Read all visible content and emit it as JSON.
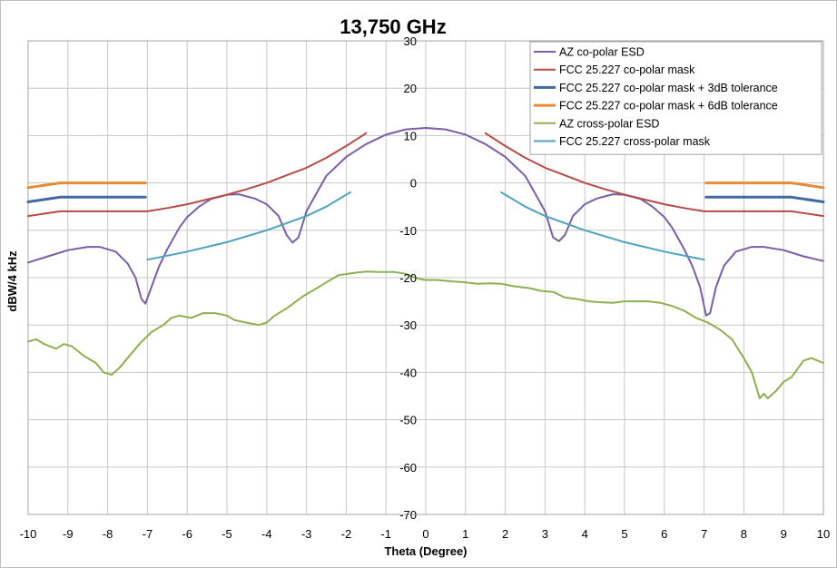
{
  "chart_data": {
    "type": "line",
    "title": "13,750 GHz",
    "xlabel": "Theta (Degree)",
    "ylabel": "dBW/4 kHz",
    "xlim": [
      -10,
      10
    ],
    "ylim": [
      -70,
      30
    ],
    "xticks": [
      -10,
      -9,
      -8,
      -7,
      -6,
      -5,
      -4,
      -3,
      -2,
      -1,
      0,
      1,
      2,
      3,
      4,
      5,
      6,
      7,
      8,
      9,
      10
    ],
    "yticks": [
      30,
      20,
      10,
      0,
      -10,
      -20,
      -30,
      -40,
      -50,
      -60,
      -70
    ],
    "grid": true,
    "legend_position": "top-right",
    "series": [
      {
        "name": "AZ co-polar ESD",
        "color": "#7b5ea7",
        "segments": [
          [
            [
              -10,
              -16.8
            ],
            [
              -9.5,
              -15.5
            ],
            [
              -9,
              -14.2
            ],
            [
              -8.5,
              -13.5
            ],
            [
              -8.2,
              -13.5
            ],
            [
              -7.8,
              -14.5
            ],
            [
              -7.5,
              -17
            ],
            [
              -7.3,
              -20
            ],
            [
              -7.15,
              -24.5
            ],
            [
              -7.05,
              -25.5
            ],
            [
              -6.9,
              -22
            ],
            [
              -6.7,
              -17.5
            ],
            [
              -6.5,
              -14
            ],
            [
              -6.2,
              -9.5
            ],
            [
              -6,
              -7.2
            ],
            [
              -5.7,
              -5
            ],
            [
              -5.4,
              -3.4
            ],
            [
              -5,
              -2.5
            ],
            [
              -4.7,
              -2.4
            ],
            [
              -4.3,
              -3.3
            ],
            [
              -4,
              -4.5
            ],
            [
              -3.7,
              -7
            ],
            [
              -3.5,
              -11
            ],
            [
              -3.35,
              -12.6
            ],
            [
              -3.2,
              -11.5
            ],
            [
              -3,
              -6
            ],
            [
              -2.7,
              -1.5
            ],
            [
              -2.5,
              1.5
            ],
            [
              -2,
              5.5
            ],
            [
              -1.5,
              8.2
            ],
            [
              -1,
              10.2
            ],
            [
              -0.5,
              11.3
            ],
            [
              0,
              11.6
            ],
            [
              0.5,
              11.3
            ],
            [
              1,
              10.2
            ],
            [
              1.5,
              8.2
            ],
            [
              2,
              5.5
            ],
            [
              2.5,
              1.5
            ],
            [
              2.7,
              -1.5
            ],
            [
              3,
              -6
            ],
            [
              3.2,
              -11.5
            ],
            [
              3.35,
              -12.3
            ],
            [
              3.5,
              -11
            ],
            [
              3.7,
              -7
            ],
            [
              4,
              -4.5
            ],
            [
              4.3,
              -3.3
            ],
            [
              4.7,
              -2.4
            ],
            [
              5,
              -2.5
            ],
            [
              5.4,
              -3.4
            ],
            [
              5.7,
              -5
            ],
            [
              6,
              -7.2
            ],
            [
              6.2,
              -9.5
            ],
            [
              6.5,
              -14
            ],
            [
              6.7,
              -17.5
            ],
            [
              6.9,
              -22
            ],
            [
              7.05,
              -28
            ],
            [
              7.15,
              -27.5
            ],
            [
              7.3,
              -22
            ],
            [
              7.5,
              -17.5
            ],
            [
              7.8,
              -14.5
            ],
            [
              8.2,
              -13.5
            ],
            [
              8.5,
              -13.5
            ],
            [
              9,
              -14.2
            ],
            [
              9.5,
              -15.5
            ],
            [
              10,
              -16.5
            ]
          ]
        ]
      },
      {
        "name": "FCC 25.227 co-polar mask",
        "color": "#b84a48",
        "segments": [
          [
            [
              -10,
              -7
            ],
            [
              -9.2,
              -6
            ],
            [
              -7,
              -6
            ],
            [
              -6.5,
              -5.3
            ],
            [
              -6,
              -4.5
            ],
            [
              -5.5,
              -3.5
            ],
            [
              -5,
              -2.5
            ],
            [
              -4.5,
              -1.3
            ],
            [
              -4,
              0
            ],
            [
              -3.5,
              1.6
            ],
            [
              -3,
              3.2
            ],
            [
              -2.5,
              5.3
            ],
            [
              -2,
              7.8
            ],
            [
              -1.5,
              10.5
            ]
          ],
          [
            [
              1.5,
              10.5
            ],
            [
              2,
              7.8
            ],
            [
              2.5,
              5.3
            ],
            [
              3,
              3.2
            ],
            [
              3.5,
              1.6
            ],
            [
              4,
              0
            ],
            [
              4.5,
              -1.3
            ],
            [
              5,
              -2.5
            ],
            [
              5.5,
              -3.5
            ],
            [
              6,
              -4.5
            ],
            [
              6.5,
              -5.3
            ],
            [
              7,
              -6
            ],
            [
              9.2,
              -6
            ],
            [
              10,
              -7
            ]
          ]
        ]
      },
      {
        "name": "FCC 25.227 co-polar mask + 3dB tolerance",
        "color": "#3e6aa0",
        "segments": [
          [
            [
              -10,
              -4
            ],
            [
              -9.2,
              -3
            ],
            [
              -7.05,
              -3
            ]
          ],
          [
            [
              7.05,
              -3
            ],
            [
              9.2,
              -3
            ],
            [
              10,
              -4
            ]
          ]
        ]
      },
      {
        "name": "FCC 25.227 co-polar mask + 6dB tolerance",
        "color": "#e88a38",
        "segments": [
          [
            [
              -10,
              -1
            ],
            [
              -9.2,
              0
            ],
            [
              -7.05,
              0
            ]
          ],
          [
            [
              7.05,
              0
            ],
            [
              9.2,
              0
            ],
            [
              10,
              -1
            ]
          ]
        ]
      },
      {
        "name": "AZ cross-polar ESD",
        "color": "#8db050",
        "segments": [
          [
            [
              -10,
              -33.5
            ],
            [
              -9.8,
              -33
            ],
            [
              -9.6,
              -34
            ],
            [
              -9.3,
              -35
            ],
            [
              -9.1,
              -34
            ],
            [
              -8.9,
              -34.5
            ],
            [
              -8.6,
              -36.5
            ],
            [
              -8.3,
              -38
            ],
            [
              -8.1,
              -40
            ],
            [
              -7.9,
              -40.5
            ],
            [
              -7.7,
              -39
            ],
            [
              -7.5,
              -37
            ],
            [
              -7.2,
              -34
            ],
            [
              -6.9,
              -31.5
            ],
            [
              -6.6,
              -30
            ],
            [
              -6.4,
              -28.5
            ],
            [
              -6.2,
              -28
            ],
            [
              -5.9,
              -28.5
            ],
            [
              -5.6,
              -27.5
            ],
            [
              -5.3,
              -27.5
            ],
            [
              -5,
              -28
            ],
            [
              -4.8,
              -29
            ],
            [
              -4.5,
              -29.5
            ],
            [
              -4.2,
              -30
            ],
            [
              -4,
              -29.5
            ],
            [
              -3.8,
              -28
            ],
            [
              -3.5,
              -26.5
            ],
            [
              -3.1,
              -24
            ],
            [
              -2.8,
              -22.5
            ],
            [
              -2.5,
              -21
            ],
            [
              -2.2,
              -19.5
            ],
            [
              -1.8,
              -19
            ],
            [
              -1.5,
              -18.7
            ],
            [
              -1.2,
              -18.8
            ],
            [
              -0.8,
              -18.8
            ],
            [
              -0.5,
              -19.2
            ],
            [
              -0.2,
              -20.2
            ],
            [
              0,
              -20.5
            ],
            [
              0.3,
              -20.5
            ],
            [
              0.7,
              -20.8
            ],
            [
              1,
              -21
            ],
            [
              1.3,
              -21.3
            ],
            [
              1.6,
              -21.2
            ],
            [
              1.9,
              -21.3
            ],
            [
              2.2,
              -21.8
            ],
            [
              2.6,
              -22.2
            ],
            [
              2.9,
              -22.8
            ],
            [
              3.2,
              -23
            ],
            [
              3.5,
              -24.2
            ],
            [
              3.8,
              -24.5
            ],
            [
              4.1,
              -25
            ],
            [
              4.4,
              -25.2
            ],
            [
              4.7,
              -25.3
            ],
            [
              5,
              -25
            ],
            [
              5.3,
              -25
            ],
            [
              5.6,
              -25
            ],
            [
              5.9,
              -25.3
            ],
            [
              6.2,
              -26
            ],
            [
              6.5,
              -27
            ],
            [
              6.8,
              -28.5
            ],
            [
              7.1,
              -29.5
            ],
            [
              7.4,
              -31
            ],
            [
              7.7,
              -33
            ],
            [
              8,
              -37
            ],
            [
              8.2,
              -40
            ],
            [
              8.4,
              -45.5
            ],
            [
              8.5,
              -44.5
            ],
            [
              8.6,
              -45.5
            ],
            [
              8.8,
              -44
            ],
            [
              9,
              -42
            ],
            [
              9.2,
              -41
            ],
            [
              9.5,
              -37.5
            ],
            [
              9.7,
              -37
            ],
            [
              10,
              -38
            ]
          ]
        ]
      },
      {
        "name": "FCC 25.227 cross-polar mask",
        "color": "#4da2bd",
        "segments": [
          [
            [
              -7,
              -16.2
            ],
            [
              -6,
              -14.5
            ],
            [
              -5,
              -12.5
            ],
            [
              -4,
              -10
            ],
            [
              -3,
              -7
            ],
            [
              -2.5,
              -5
            ],
            [
              -1.9,
              -2
            ]
          ],
          [
            [
              1.9,
              -2
            ],
            [
              2.5,
              -5
            ],
            [
              3,
              -7
            ],
            [
              4,
              -10
            ],
            [
              5,
              -12.5
            ],
            [
              6,
              -14.5
            ],
            [
              7,
              -16.2
            ]
          ]
        ]
      }
    ]
  }
}
